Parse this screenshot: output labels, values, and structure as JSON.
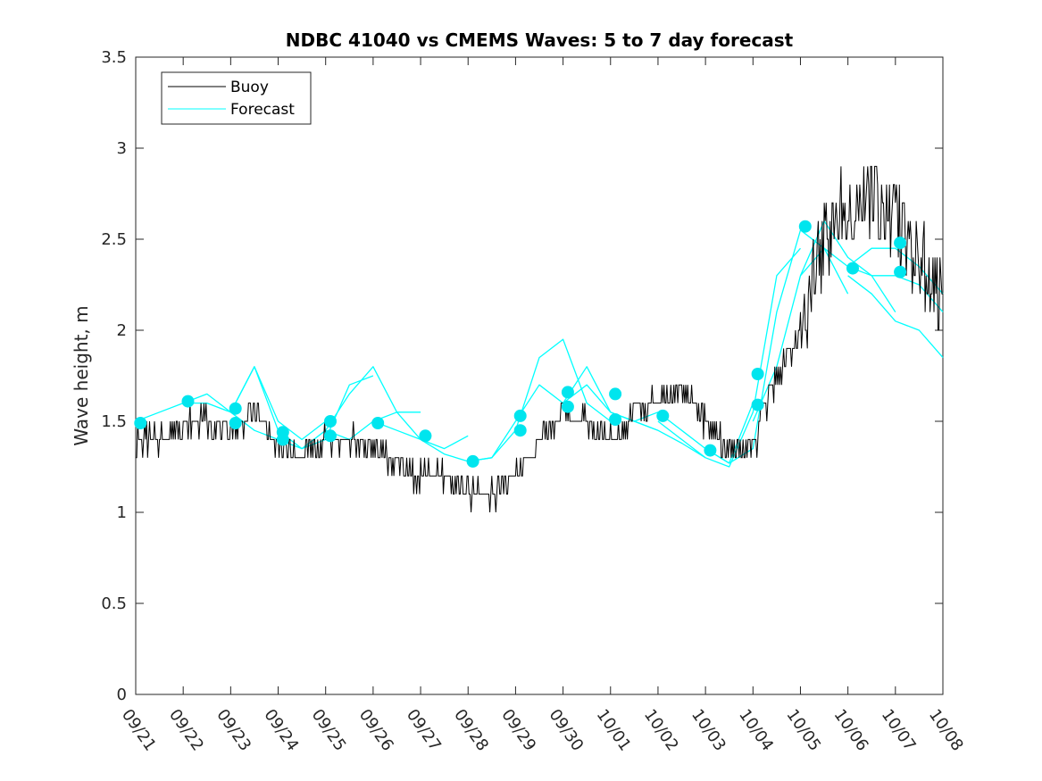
{
  "chart_data": {
    "type": "line",
    "title": "NDBC 41040 vs CMEMS Waves: 5 to 7 day forecast",
    "xlabel": "",
    "ylabel": "Wave height, m",
    "xlim": [
      0,
      17
    ],
    "ylim": [
      0,
      3.5
    ],
    "yticks": [
      0,
      0.5,
      1,
      1.5,
      2,
      2.5,
      3,
      3.5
    ],
    "yticklabels": [
      "0",
      "0.5",
      "1",
      "1.5",
      "2",
      "2.5",
      "3",
      "3.5"
    ],
    "xticks": [
      0,
      1,
      2,
      3,
      4,
      5,
      6,
      7,
      8,
      9,
      10,
      11,
      12,
      13,
      14,
      15,
      16,
      17
    ],
    "xticklabels": [
      "09/21",
      "09/22",
      "09/23",
      "09/24",
      "09/25",
      "09/26",
      "09/27",
      "09/28",
      "09/29",
      "09/30",
      "10/01",
      "10/02",
      "10/03",
      "10/04",
      "10/05",
      "10/06",
      "10/07",
      "10/08"
    ],
    "legend": {
      "placement": "top-left",
      "entries": [
        "Buoy",
        "Forecast"
      ]
    },
    "colors": {
      "buoy": "#000000",
      "forecast": "#00ffff",
      "marker": "#00e5ee"
    },
    "buoy": {
      "name": "Buoy",
      "x": [
        0,
        0.5,
        1,
        1.5,
        2,
        2.5,
        3,
        3.5,
        4,
        4.5,
        5,
        5.5,
        6,
        6.5,
        7,
        7.5,
        8,
        8.5,
        9,
        9.5,
        10,
        10.5,
        11,
        11.5,
        12,
        12.5,
        13,
        13.5,
        14,
        14.5,
        15,
        15.5,
        16,
        16.5,
        17
      ],
      "y": [
        1.4,
        1.4,
        1.5,
        1.5,
        1.45,
        1.55,
        1.35,
        1.3,
        1.4,
        1.4,
        1.35,
        1.25,
        1.2,
        1.2,
        1.1,
        1.1,
        1.2,
        1.4,
        1.55,
        1.5,
        1.4,
        1.55,
        1.6,
        1.65,
        1.5,
        1.35,
        1.35,
        1.75,
        2.0,
        2.5,
        2.7,
        2.75,
        2.6,
        2.4,
        2.1
      ]
    },
    "forecast_runs": [
      {
        "x": [
          0,
          0.5,
          1,
          1.5,
          2,
          2.5,
          3
        ],
        "y": [
          1.5,
          1.55,
          1.6,
          1.6,
          1.55,
          1.45,
          1.4
        ]
      },
      {
        "x": [
          1,
          1.5,
          2,
          2.5,
          3,
          3.5,
          4
        ],
        "y": [
          1.6,
          1.65,
          1.55,
          1.8,
          1.5,
          1.4,
          1.5
        ]
      },
      {
        "x": [
          2,
          2.5,
          3,
          3.5,
          4,
          4.5,
          5
        ],
        "y": [
          1.55,
          1.8,
          1.45,
          1.35,
          1.4,
          1.7,
          1.75
        ]
      },
      {
        "x": [
          3,
          3.5,
          4,
          4.5,
          5,
          5.5,
          6
        ],
        "y": [
          1.4,
          1.35,
          1.45,
          1.65,
          1.8,
          1.55,
          1.55
        ]
      },
      {
        "x": [
          4,
          4.5,
          5,
          5.5,
          6,
          6.5,
          7
        ],
        "y": [
          1.45,
          1.4,
          1.5,
          1.55,
          1.4,
          1.35,
          1.42
        ]
      },
      {
        "x": [
          5,
          5.5,
          6,
          6.5,
          7,
          7.5,
          8
        ],
        "y": [
          1.5,
          1.45,
          1.4,
          1.32,
          1.28,
          1.3,
          1.5
        ]
      },
      {
        "x": [
          7,
          7.5,
          8,
          8.5,
          9,
          9.5,
          10
        ],
        "y": [
          1.28,
          1.3,
          1.45,
          1.85,
          1.95,
          1.6,
          1.5
        ]
      },
      {
        "x": [
          8,
          8.5,
          9,
          9.5,
          10,
          10.5,
          11
        ],
        "y": [
          1.5,
          1.7,
          1.6,
          1.8,
          1.55,
          1.5,
          1.45
        ]
      },
      {
        "x": [
          9,
          9.5,
          10,
          10.5,
          11,
          11.5,
          12
        ],
        "y": [
          1.6,
          1.7,
          1.55,
          1.5,
          1.45,
          1.38,
          1.3
        ]
      },
      {
        "x": [
          10,
          10.5,
          11,
          11.5,
          12,
          12.5,
          13
        ],
        "y": [
          1.55,
          1.5,
          1.55,
          1.45,
          1.35,
          1.27,
          1.6
        ]
      },
      {
        "x": [
          11,
          11.5,
          12,
          12.5,
          13,
          13.5,
          14
        ],
        "y": [
          1.5,
          1.4,
          1.3,
          1.25,
          1.55,
          2.3,
          2.45
        ]
      },
      {
        "x": [
          12,
          12.5,
          13,
          13.5,
          14,
          14.5,
          15
        ],
        "y": [
          1.35,
          1.27,
          1.35,
          2.1,
          2.55,
          2.45,
          2.2
        ]
      },
      {
        "x": [
          13,
          13.5,
          14,
          14.5,
          15,
          15.5,
          16
        ],
        "y": [
          1.5,
          1.8,
          2.3,
          2.6,
          2.4,
          2.3,
          2.1
        ]
      },
      {
        "x": [
          14,
          14.5,
          15,
          15.5,
          16,
          16.5,
          17
        ],
        "y": [
          2.3,
          2.45,
          2.35,
          2.3,
          2.3,
          2.25,
          2.1
        ]
      },
      {
        "x": [
          15,
          15.5,
          16,
          16.5,
          17
        ],
        "y": [
          2.35,
          2.45,
          2.45,
          2.35,
          2.2
        ]
      },
      {
        "x": [
          15,
          15.5,
          16,
          16.5,
          17
        ],
        "y": [
          2.3,
          2.2,
          2.05,
          2.0,
          1.85
        ]
      }
    ],
    "forecast_markers": {
      "x": [
        0.1,
        1.1,
        2.1,
        2.1,
        3.1,
        3.1,
        4.1,
        4.1,
        5.1,
        6.1,
        7.1,
        8.1,
        8.1,
        9.1,
        9.1,
        10.1,
        10.1,
        11.1,
        12.1,
        13.1,
        13.1,
        14.1,
        15.1,
        16.1,
        16.1
      ],
      "y": [
        1.49,
        1.61,
        1.57,
        1.49,
        1.44,
        1.4,
        1.5,
        1.42,
        1.49,
        1.42,
        1.28,
        1.53,
        1.45,
        1.66,
        1.58,
        1.65,
        1.51,
        1.53,
        1.34,
        1.76,
        1.59,
        2.57,
        2.34,
        2.48,
        2.32
      ]
    }
  }
}
